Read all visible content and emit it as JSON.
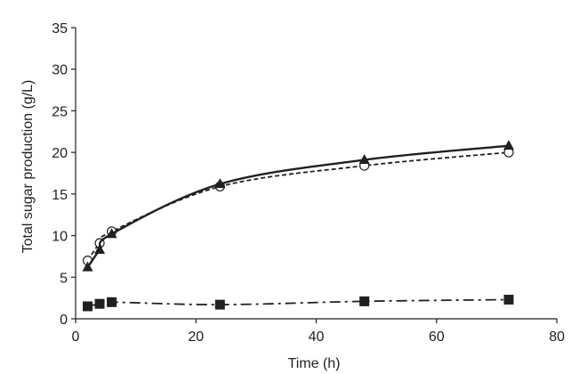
{
  "chart_data": {
    "type": "line",
    "title": "",
    "xlabel": "Time (h)",
    "ylabel": "Total sugar production (g/L)",
    "xlim": [
      0,
      80
    ],
    "ylim": [
      0,
      35
    ],
    "xticks": [
      0,
      20,
      40,
      60,
      80
    ],
    "yticks": [
      0,
      5,
      10,
      15,
      20,
      25,
      30,
      35
    ],
    "grid": false,
    "legend": "none",
    "series": [
      {
        "marker": "open-circle",
        "line_style": "dashed",
        "color": "#231f20",
        "points": [
          [
            2,
            7.0
          ],
          [
            4,
            9.1
          ],
          [
            6,
            10.5
          ],
          [
            24,
            15.9
          ],
          [
            48,
            18.4
          ],
          [
            72,
            20.0
          ]
        ]
      },
      {
        "marker": "filled-triangle",
        "line_style": "solid",
        "color": "#231f20",
        "points": [
          [
            2,
            6.2
          ],
          [
            4,
            8.3
          ],
          [
            6,
            10.2
          ],
          [
            24,
            16.2
          ],
          [
            48,
            19.1
          ],
          [
            72,
            20.8
          ]
        ]
      },
      {
        "marker": "filled-square",
        "line_style": "dash-dot",
        "color": "#231f20",
        "points": [
          [
            2,
            1.5
          ],
          [
            4,
            1.8
          ],
          [
            6,
            2.0
          ],
          [
            24,
            1.7
          ],
          [
            48,
            2.1
          ],
          [
            72,
            2.3
          ]
        ]
      }
    ]
  }
}
